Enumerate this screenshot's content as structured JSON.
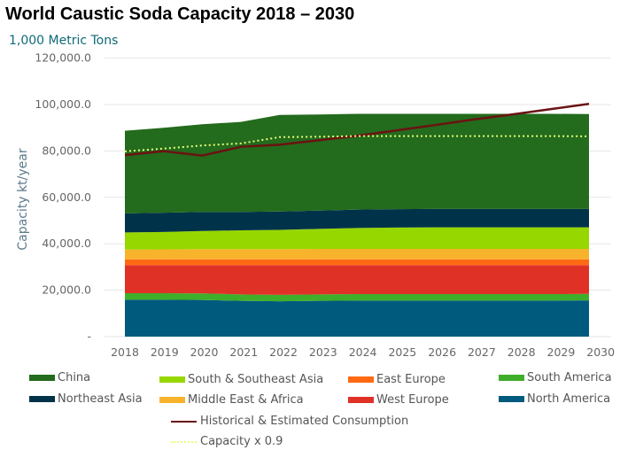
{
  "chart_data": {
    "type": "area",
    "stacked": true,
    "title": "World Caustic Soda Capacity 2018 – 2030",
    "subtitle": "1,000 Metric Tons",
    "ylabel": "Capacity kt/year",
    "xlabel": "",
    "ylim": [
      0,
      120000
    ],
    "yticks": [
      "-",
      "20,000.0",
      "40,000.0",
      "60,000.0",
      "80,000.0",
      "100,000.0",
      "120,000.0"
    ],
    "grid": true,
    "legend_position": "bottom",
    "categories": [
      "2018",
      "2019",
      "2020",
      "2021",
      "2022",
      "2023",
      "2024",
      "2025",
      "2026",
      "2027",
      "2028",
      "2029",
      "2030"
    ],
    "series": [
      {
        "name": "North America",
        "color": "#005a7e",
        "values": [
          15900,
          15900,
          15800,
          15400,
          15200,
          15400,
          15500,
          15500,
          15500,
          15500,
          15500,
          15500,
          15600
        ]
      },
      {
        "name": "South America",
        "color": "#3fae2a",
        "values": [
          2800,
          2800,
          2800,
          2800,
          2800,
          2800,
          2800,
          2800,
          2800,
          2800,
          2800,
          2800,
          2800
        ]
      },
      {
        "name": "West Europe",
        "color": "#e03127",
        "values": [
          12100,
          12100,
          12200,
          12600,
          12800,
          12600,
          12500,
          12500,
          12500,
          12500,
          12500,
          12500,
          12400
        ]
      },
      {
        "name": "East Europe",
        "color": "#ff6a13",
        "values": [
          2500,
          2500,
          2500,
          2500,
          2500,
          2500,
          2500,
          2500,
          2500,
          2500,
          2500,
          2500,
          2500
        ]
      },
      {
        "name": "Middle East & Africa",
        "color": "#f7b32b",
        "values": [
          4200,
          4300,
          4400,
          4400,
          4400,
          4500,
          4500,
          4500,
          4500,
          4500,
          4500,
          4500,
          4500
        ]
      },
      {
        "name": "South & Southeast Asia",
        "color": "#97d700",
        "values": [
          7400,
          7500,
          7800,
          8100,
          8300,
          8600,
          9000,
          9200,
          9300,
          9300,
          9300,
          9300,
          9300
        ]
      },
      {
        "name": "Northeast Asia",
        "color": "#003349",
        "values": [
          8200,
          8300,
          8200,
          7900,
          7900,
          7900,
          7900,
          7900,
          7900,
          7900,
          7900,
          7900,
          7900
        ]
      },
      {
        "name": "China",
        "color": "#236b1d",
        "values": [
          35600,
          36600,
          37800,
          38800,
          41600,
          41400,
          41300,
          41100,
          41000,
          41000,
          41000,
          41000,
          40900
        ]
      }
    ],
    "lines": [
      {
        "name": "Historical & Estimated Consumption",
        "color": "#6b1212",
        "style": "solid",
        "values": [
          78200,
          79900,
          78000,
          81800,
          82700,
          84600,
          86500,
          88800,
          91100,
          93500,
          95700,
          98000,
          100300
        ]
      },
      {
        "name": "Capacity x 0.9",
        "color": "#e4ff7a",
        "style": "dotted",
        "values": [
          79830,
          81000,
          82350,
          83250,
          85950,
          86130,
          86400,
          86400,
          86400,
          86400,
          86400,
          86400,
          86310
        ]
      }
    ]
  }
}
